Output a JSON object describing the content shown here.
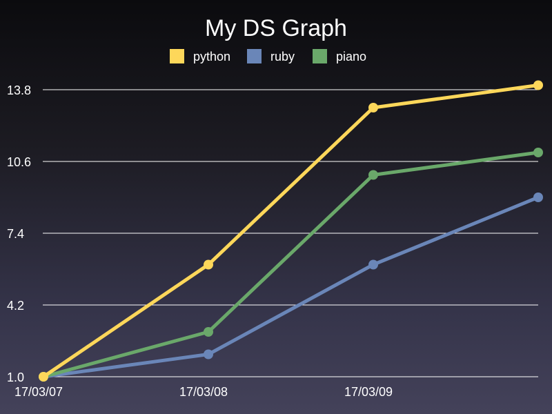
{
  "chart_data": {
    "type": "line",
    "title": "My DS Graph",
    "categories": [
      "17/03/07",
      "17/03/08",
      "17/03/09",
      ""
    ],
    "ylim": [
      1.0,
      15.0
    ],
    "yticks": [
      "1.0",
      "4.2",
      "7.4",
      "10.6",
      "13.8"
    ],
    "grid": true,
    "legend_position": "top-center",
    "series": [
      {
        "name": "python",
        "color": "#fdd75a",
        "values": [
          1.0,
          6.0,
          13.0,
          14.0
        ]
      },
      {
        "name": "ruby",
        "color": "#6a86b8",
        "values": [
          1.0,
          2.0,
          6.0,
          9.0
        ]
      },
      {
        "name": "piano",
        "color": "#6aa86a",
        "values": [
          1.0,
          3.0,
          10.0,
          11.0
        ]
      }
    ]
  }
}
